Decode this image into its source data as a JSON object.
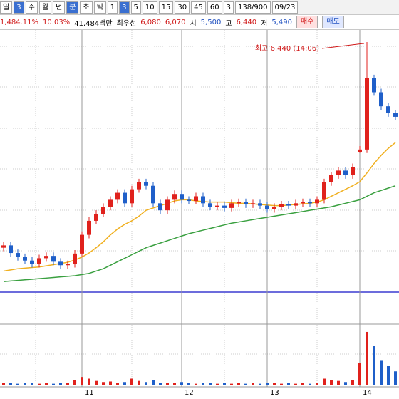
{
  "toolbar": {
    "periods": [
      "일",
      "3",
      "주",
      "월",
      "년",
      "분",
      "초",
      "틱",
      "1",
      "3",
      "5",
      "10",
      "15",
      "30",
      "45",
      "60",
      "3"
    ],
    "count": "138/900",
    "date": "09/23"
  },
  "quote": {
    "items": [
      "1,484.11%",
      "10.03%",
      "41,484백만",
      "최우선",
      "6,080",
      "6,070",
      "시",
      "5,500",
      "고",
      "6,440",
      "저",
      "5,490"
    ],
    "buy": "매수",
    "sell": "매도"
  },
  "chart_data": {
    "type": "candlestick",
    "annotation": "최고 6,440 (14:06)",
    "categories": [
      null,
      null,
      null,
      null,
      null,
      null,
      null,
      null,
      null,
      null,
      null,
      "11",
      null,
      null,
      null,
      null,
      null,
      null,
      null,
      null,
      null,
      null,
      null,
      null,
      null,
      "12",
      null,
      null,
      null,
      null,
      null,
      null,
      null,
      null,
      null,
      null,
      null,
      "13",
      null,
      null,
      null,
      null,
      null,
      null,
      null,
      null,
      null,
      null,
      null,
      null,
      "14",
      null,
      null,
      null,
      null,
      null
    ],
    "open": [
      4680,
      4700,
      4635,
      4600,
      4570,
      4540,
      4590,
      4610,
      4560,
      4530,
      4540,
      4630,
      4790,
      4910,
      4970,
      5030,
      5090,
      5150,
      5060,
      5180,
      5240,
      5210,
      5060,
      5000,
      5090,
      5140,
      5090,
      5080,
      5120,
      5060,
      5030,
      5040,
      5020,
      5060,
      5070,
      5050,
      5060,
      5040,
      5010,
      5030,
      5050,
      5040,
      5060,
      5070,
      5060,
      5090,
      5240,
      5300,
      5340,
      5300,
      5500,
      5520,
      6130,
      6010,
      5890,
      5830
    ],
    "high": [
      4730,
      4730,
      4665,
      4630,
      4600,
      4620,
      4640,
      4640,
      4590,
      4570,
      4660,
      4820,
      4940,
      5000,
      5060,
      5120,
      5180,
      5180,
      5210,
      5270,
      5270,
      5240,
      5090,
      5120,
      5170,
      5170,
      5120,
      5150,
      5150,
      5090,
      5070,
      5070,
      5090,
      5100,
      5100,
      5090,
      5090,
      5070,
      5060,
      5080,
      5080,
      5090,
      5100,
      5100,
      5120,
      5270,
      5330,
      5370,
      5370,
      5400,
      5550,
      6440,
      6160,
      6040,
      5920,
      5860
    ],
    "low": [
      4650,
      4605,
      4570,
      4540,
      4510,
      4510,
      4560,
      4530,
      4500,
      4500,
      4510,
      4600,
      4760,
      4880,
      4940,
      5000,
      5060,
      5030,
      5030,
      5150,
      5180,
      5030,
      4970,
      4970,
      5060,
      5060,
      5050,
      5050,
      5030,
      5000,
      5000,
      4990,
      4990,
      5030,
      5020,
      5020,
      5010,
      4980,
      4980,
      5000,
      5010,
      5010,
      5030,
      5030,
      5030,
      5060,
      5210,
      5270,
      5270,
      5270,
      5490,
      5490,
      5980,
      5860,
      5800,
      5770
    ],
    "close": [
      4700,
      4635,
      4600,
      4570,
      4540,
      4590,
      4610,
      4560,
      4530,
      4540,
      4630,
      4790,
      4910,
      4970,
      5030,
      5090,
      5150,
      5060,
      5180,
      5240,
      5210,
      5060,
      5000,
      5090,
      5140,
      5090,
      5080,
      5120,
      5060,
      5030,
      5040,
      5020,
      5060,
      5070,
      5050,
      5060,
      5040,
      5010,
      5030,
      5050,
      5040,
      5060,
      5070,
      5060,
      5090,
      5240,
      5300,
      5340,
      5300,
      5370,
      5520,
      6130,
      6010,
      5890,
      5830,
      5800
    ],
    "up_color": "#e0211c",
    "down_color": "#1f5fc9",
    "ylim": [
      4300,
      6525
    ],
    "lines": [
      {
        "color": "#f0b020",
        "values": [
          4480,
          4490,
          4500,
          4505,
          4510,
          4515,
          4525,
          4535,
          4545,
          4555,
          4575,
          4600,
          4635,
          4680,
          4730,
          4790,
          4840,
          4880,
          4910,
          4950,
          5000,
          5020,
          5040,
          5060,
          5080,
          5090,
          5090,
          5080,
          5075,
          5070,
          5070,
          5070,
          5065,
          5060,
          5060,
          5055,
          5050,
          5045,
          5040,
          5040,
          5045,
          5050,
          5055,
          5060,
          5070,
          5090,
          5120,
          5150,
          5180,
          5210,
          5245,
          5320,
          5400,
          5470,
          5530,
          5580
        ]
      },
      {
        "color": "#3aa040",
        "values": [
          4390,
          4395,
          4400,
          4405,
          4410,
          4415,
          4420,
          4425,
          4430,
          4435,
          4440,
          4450,
          4460,
          4480,
          4500,
          4530,
          4560,
          4590,
          4620,
          4650,
          4680,
          4700,
          4720,
          4740,
          4760,
          4780,
          4800,
          4815,
          4830,
          4845,
          4860,
          4875,
          4890,
          4900,
          4910,
          4920,
          4930,
          4940,
          4950,
          4960,
          4970,
          4980,
          4990,
          5000,
          5010,
          5020,
          5030,
          5045,
          5060,
          5075,
          5090,
          5120,
          5150,
          5170,
          5190,
          5210
        ]
      }
    ],
    "volume": [
      5,
      4,
      3,
      4,
      5,
      3,
      4,
      3,
      4,
      5,
      10,
      15,
      12,
      8,
      6,
      7,
      5,
      6,
      12,
      8,
      6,
      9,
      5,
      4,
      5,
      6,
      4,
      3,
      4,
      5,
      3,
      4,
      3,
      4,
      3,
      4,
      3,
      5,
      4,
      3,
      4,
      3,
      4,
      3,
      5,
      12,
      10,
      8,
      6,
      9,
      40,
      95,
      70,
      45,
      35,
      25
    ],
    "volume_ylim": [
      0,
      100
    ]
  }
}
